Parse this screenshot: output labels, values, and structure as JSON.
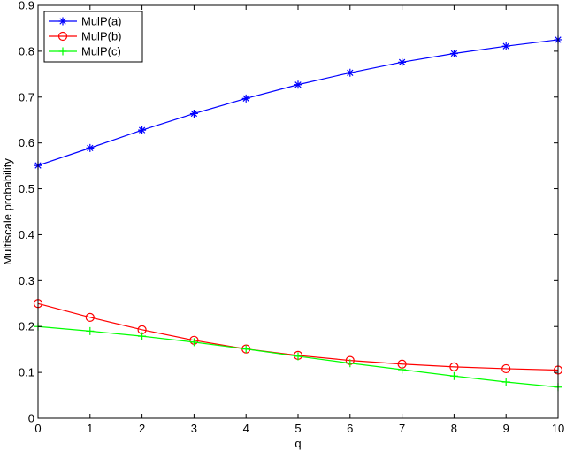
{
  "chart_data": {
    "type": "line",
    "xlabel": "q",
    "ylabel": "Multiscale probability",
    "xlim": [
      0,
      10
    ],
    "ylim": [
      0,
      0.9
    ],
    "xticks": [
      0,
      1,
      2,
      3,
      4,
      5,
      6,
      7,
      8,
      9,
      10
    ],
    "yticks": [
      0,
      0.1,
      0.2,
      0.3,
      0.4,
      0.5,
      0.6,
      0.7,
      0.8,
      0.9
    ],
    "grid": false,
    "legend_position": "top-left",
    "x": [
      0,
      1,
      2,
      3,
      4,
      5,
      6,
      7,
      8,
      9,
      10
    ],
    "series": [
      {
        "name": "MulP(a)",
        "color": "#0000ff",
        "marker": "asterisk",
        "values": [
          0.551,
          0.589,
          0.628,
          0.664,
          0.697,
          0.727,
          0.753,
          0.776,
          0.795,
          0.811,
          0.825
        ]
      },
      {
        "name": "MulP(b)",
        "color": "#ff0000",
        "marker": "circle",
        "values": [
          0.25,
          0.22,
          0.193,
          0.17,
          0.151,
          0.137,
          0.126,
          0.118,
          0.112,
          0.108,
          0.105
        ]
      },
      {
        "name": "MulP(c)",
        "color": "#00ff00",
        "marker": "plus",
        "values": [
          0.2,
          0.19,
          0.179,
          0.166,
          0.151,
          0.135,
          0.12,
          0.106,
          0.092,
          0.079,
          0.068
        ]
      }
    ]
  }
}
